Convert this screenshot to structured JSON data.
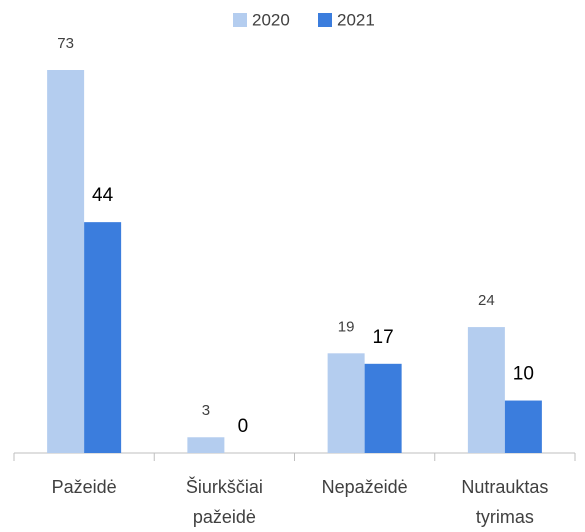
{
  "chart_data": {
    "type": "bar",
    "categories": [
      "Pažeidė",
      "Šiurkščiai pažeidė",
      "Nepažeidė",
      "Nutrauktas tyrimas"
    ],
    "series": [
      {
        "name": "2020",
        "color": "#b4cdef",
        "values": [
          73,
          3,
          19,
          24
        ]
      },
      {
        "name": "2021",
        "color": "#3b7ddd",
        "values": [
          44,
          0,
          17,
          10
        ]
      }
    ],
    "legend": "top"
  }
}
